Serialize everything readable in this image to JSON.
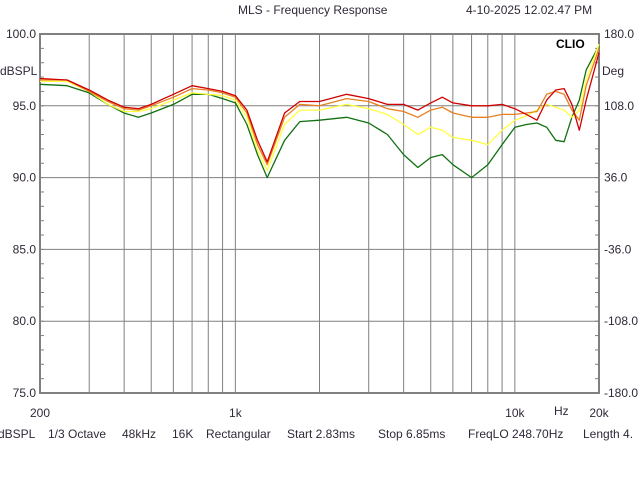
{
  "header": {
    "title": "MLS - Frequency Response",
    "timestamp": "4-10-2025 12.02.47 PM"
  },
  "status_bar": [
    "dBSPL",
    "1/3 Octave",
    "48kHz",
    "16K",
    "Rectangular",
    "Start 2.83ms",
    "Stop 6.85ms",
    "FreqLO 248.70Hz",
    "Length 4."
  ],
  "chart_data": {
    "type": "line",
    "title": "MLS - Frequency Response",
    "watermark": "CLIO",
    "xlabel": "Hz",
    "ylabel": "dBSPL",
    "y2label": "Deg",
    "x_scale": "log",
    "xlim": [
      200,
      20000
    ],
    "ylim": [
      75,
      100
    ],
    "y2lim": [
      -180,
      180
    ],
    "grid": true,
    "x_tick_labels": [
      "200",
      "1k",
      "10k",
      "20k"
    ],
    "x_tick_values": [
      200,
      1000,
      10000,
      20000
    ],
    "x_grid_values": [
      300,
      400,
      500,
      600,
      700,
      800,
      900,
      1000,
      2000,
      3000,
      4000,
      5000,
      6000,
      7000,
      8000,
      9000,
      10000
    ],
    "y_tick_labels": [
      "100.0",
      "95.0",
      "90.0",
      "85.0",
      "80.0",
      "75.0"
    ],
    "y_tick_values": [
      100,
      95,
      90,
      85,
      80,
      75
    ],
    "y2_tick_labels": [
      "180.0",
      "108.0",
      "36.0",
      "-36.0",
      "-108.0",
      "-180.0"
    ],
    "colors": {
      "background": "#ffffff",
      "grid": "#808080",
      "frame": "#808080"
    },
    "x": [
      200,
      250,
      300,
      350,
      400,
      450,
      500,
      600,
      700,
      800,
      900,
      1000,
      1100,
      1200,
      1300,
      1500,
      1700,
      2000,
      2500,
      3000,
      3500,
      4000,
      4500,
      5000,
      5500,
      6000,
      7000,
      8000,
      9000,
      10000,
      11000,
      12000,
      13000,
      14000,
      15000,
      16000,
      17000,
      18000,
      20000
    ],
    "series": [
      {
        "color": "#107010",
        "values": [
          96.5,
          96.4,
          95.9,
          95.1,
          94.5,
          94.2,
          94.5,
          95.1,
          95.8,
          95.8,
          95.5,
          95.2,
          93.7,
          91.6,
          90.0,
          92.6,
          93.9,
          94.0,
          94.2,
          93.8,
          93.0,
          91.6,
          90.7,
          91.4,
          91.6,
          90.9,
          90.0,
          90.9,
          92.3,
          93.5,
          93.7,
          93.8,
          93.5,
          92.6,
          92.5,
          94.2,
          95.4,
          97.5,
          99.2
        ]
      },
      {
        "color": "#ffff40",
        "values": [
          96.7,
          96.7,
          96.0,
          95.1,
          94.6,
          94.6,
          94.8,
          95.4,
          95.9,
          95.8,
          95.7,
          95.4,
          94.2,
          91.9,
          90.5,
          93.7,
          94.7,
          94.7,
          95.1,
          94.8,
          94.4,
          93.7,
          93.0,
          93.5,
          93.3,
          92.8,
          92.6,
          92.3,
          93.3,
          94.0,
          94.3,
          94.7,
          95.1,
          94.9,
          94.7,
          94.2,
          94.7,
          96.8,
          99.3
        ]
      },
      {
        "color": "#e88020",
        "values": [
          96.8,
          96.8,
          96.0,
          95.3,
          94.8,
          94.7,
          95.0,
          95.6,
          96.2,
          96.1,
          95.9,
          95.6,
          94.5,
          92.3,
          90.9,
          94.2,
          95.1,
          95.0,
          95.5,
          95.3,
          94.8,
          94.6,
          94.2,
          94.7,
          94.9,
          94.5,
          94.2,
          94.2,
          94.4,
          94.4,
          94.5,
          94.6,
          95.8,
          96.0,
          95.8,
          94.7,
          94.0,
          96.4,
          99.0
        ]
      },
      {
        "color": "#d00000",
        "values": [
          96.9,
          96.8,
          96.1,
          95.4,
          94.9,
          94.8,
          95.1,
          95.8,
          96.4,
          96.2,
          96.0,
          95.7,
          94.7,
          92.6,
          91.1,
          94.5,
          95.3,
          95.3,
          95.8,
          95.5,
          95.1,
          95.1,
          94.7,
          95.2,
          95.6,
          95.2,
          95.0,
          95.0,
          95.1,
          94.8,
          94.4,
          94.0,
          95.4,
          96.1,
          96.2,
          95.1,
          93.3,
          95.4,
          98.7
        ]
      }
    ]
  }
}
